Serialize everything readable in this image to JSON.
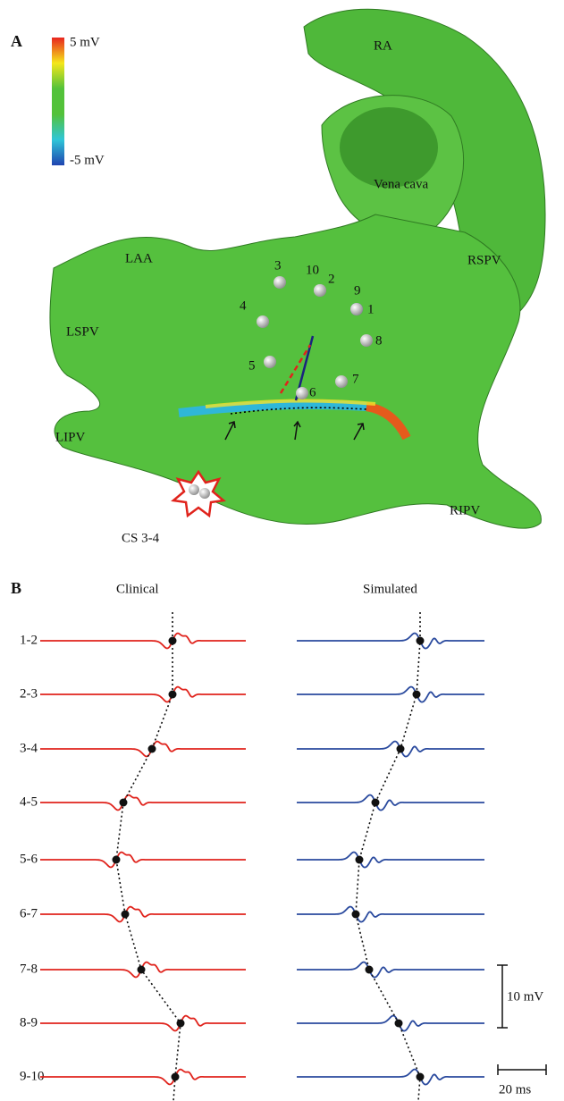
{
  "panel_a": {
    "label": "A",
    "colorbar": {
      "max_label": "5 mV",
      "min_label": "-5 mV"
    },
    "regions": [
      "RA",
      "Vena cava",
      "LAA",
      "RSPV",
      "LSPV",
      "LIPV",
      "RIPV"
    ],
    "electrodes": [
      "1",
      "2",
      "3",
      "4",
      "5",
      "6",
      "7",
      "8",
      "9",
      "10"
    ],
    "stimulus": "CS 3-4"
  },
  "panel_b": {
    "label": "B",
    "columns": [
      "Clinical",
      "Simulated"
    ],
    "rows": [
      "1-2",
      "2-3",
      "3-4",
      "4-5",
      "5-6",
      "6-7",
      "7-8",
      "8-9",
      "9-10"
    ],
    "scale_bars": {
      "voltage": "10 mV",
      "time": "20 ms"
    }
  }
}
